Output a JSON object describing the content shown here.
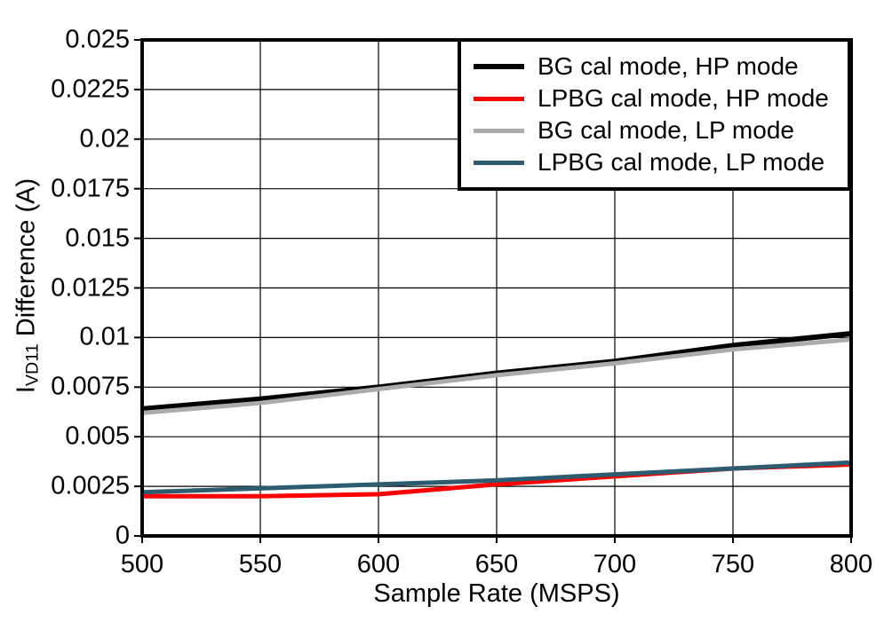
{
  "figure": {
    "background": "#FFFFFF",
    "axis_color": "#000000",
    "grid_color": "#000000"
  },
  "chart_data": {
    "type": "line",
    "title": "",
    "xlabel": "Sample Rate (MSPS)",
    "ylabel_prefix": "I",
    "ylabel_subscript": "VD11",
    "ylabel_suffix": " Difference (A)",
    "xlim": [
      500,
      800
    ],
    "ylim": [
      0,
      0.025
    ],
    "grid": true,
    "legend_position": "top-right",
    "x": [
      500,
      550,
      600,
      650,
      700,
      750,
      800
    ],
    "xtick_labels": [
      "500",
      "550",
      "600",
      "650",
      "700",
      "750",
      "800"
    ],
    "ytick_labels": [
      "0",
      "0.0025",
      "0.005",
      "0.0075",
      "0.01",
      "0.0125",
      "0.015",
      "0.0175",
      "0.02",
      "0.0225",
      "0.025"
    ],
    "series": [
      {
        "name": "BG cal mode, HP mode",
        "color": "#000000",
        "values": [
          0.0064,
          0.0069,
          0.0075,
          0.0082,
          0.0088,
          0.0096,
          0.0102
        ]
      },
      {
        "name": "LPBG cal mode, HP mode",
        "color": "#FF0000",
        "values": [
          0.002,
          0.002,
          0.0021,
          0.0026,
          0.003,
          0.0034,
          0.0036
        ]
      },
      {
        "name": "BG cal mode, LP mode",
        "color": "#ABABAB",
        "values": [
          0.0062,
          0.0067,
          0.0074,
          0.0081,
          0.0087,
          0.0094,
          0.0099
        ]
      },
      {
        "name": "LPBG cal mode, LP mode",
        "color": "#2D5C70",
        "values": [
          0.0022,
          0.0024,
          0.0026,
          0.0028,
          0.0031,
          0.0034,
          0.0037
        ]
      }
    ]
  }
}
